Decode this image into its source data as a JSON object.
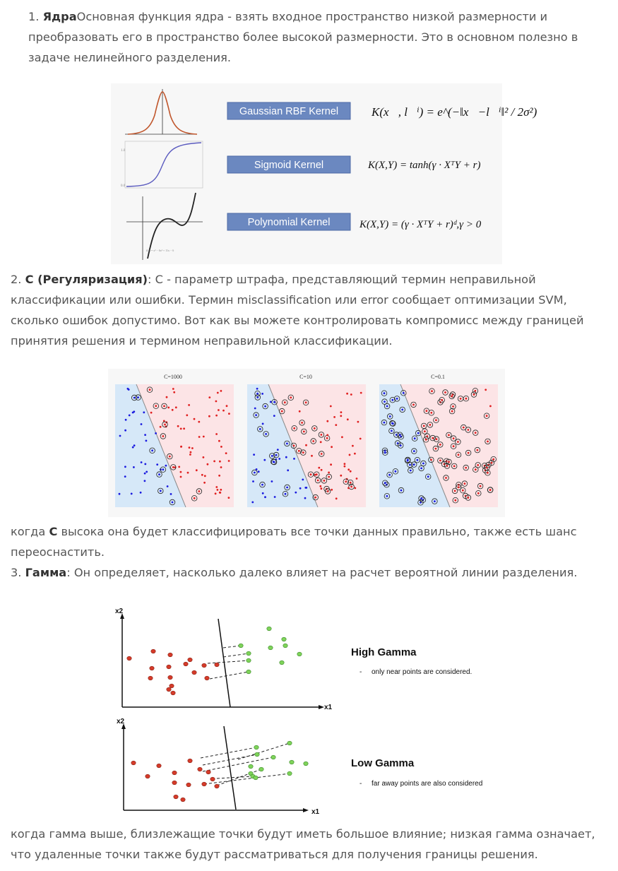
{
  "item1": {
    "prefix": "1. ",
    "title": "Ядра",
    "text": "Основная функция ядра - взять входное пространство низкой размерности и преобразовать его в пространство более высокой размерности. Это в основном полезно в задаче нелинейного разделения."
  },
  "kernels": {
    "gaussian": {
      "label": "Gaussian RBF Kernel",
      "formula": "K(x⃗, l⃗ⁱ) = e^(−‖x⃗−l⃗ⁱ‖² / 2σ²)"
    },
    "sigmoid": {
      "label": "Sigmoid Kernel",
      "formula": "K(X,Y) = tanh(γ · XᵀY + r)"
    },
    "polynomial": {
      "label": "Polynomial Kernel",
      "formula": "K(X,Y) = (γ · XᵀY + r)ᵈ,γ > 0"
    },
    "box_color": "#6b88c0"
  },
  "item2": {
    "prefix": "2. ",
    "title": "C (Регуляризация)",
    "text": ": C - параметр штрафа, представляющий термин неправильной классификации или ошибки. Термин misclassification или error сообщает оптимизации SVM, сколько ошибок допустимо. Вот как вы можете контролировать компромисс между границей принятия решения и термином неправильной классификации."
  },
  "c_plots": {
    "titles": [
      "C=1000",
      "C=10",
      "C=0.1"
    ],
    "blue_region": "#d6e8f8",
    "red_region": "#fce4e6"
  },
  "after_c": {
    "before": "когда ",
    "bold": "C",
    "after": " высока она будет классифицировать все точки данных правильно, также есть шанс переоснастить."
  },
  "item3": {
    "prefix": "3. ",
    "title": "Гамма",
    "text": ": Он определяет, насколько далеко влияет на расчет вероятной линии разделения."
  },
  "gamma": {
    "axis_y": "x2",
    "axis_x": "x1",
    "high_title": "High Gamma",
    "high_desc": "only near points are considered.",
    "low_title": "Low Gamma",
    "low_desc": "far away points are also considered",
    "dash": "-"
  },
  "closing": {
    "text": "когда гамма выше, близлежащие точки будут иметь большое влияние; низкая гамма означает, что удаленные точки также будут рассматриваться для получения границы решения."
  }
}
